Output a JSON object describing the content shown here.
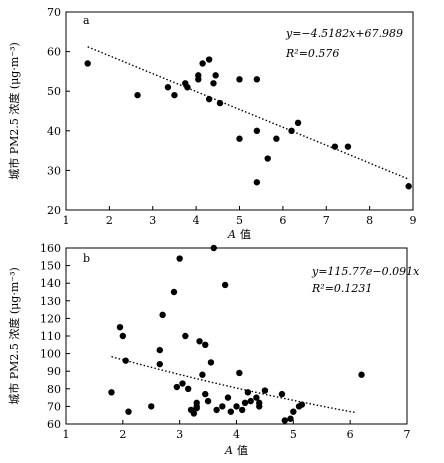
{
  "chart_data": [
    {
      "type": "scatter",
      "panel_label": "a",
      "xlabel_var": "A",
      "xlabel_word": "值",
      "ylabel": "城市 PM2.5 浓度 (μg·m⁻³)",
      "xlim": [
        1,
        9
      ],
      "ylim": [
        20,
        70
      ],
      "xticks": [
        "1",
        "2",
        "3",
        "4",
        "5",
        "6",
        "7",
        "8",
        "9"
      ],
      "yticks": [
        "20",
        "30",
        "40",
        "50",
        "60",
        "70"
      ],
      "equation": "y=−4.5182x+67.989",
      "r2": "R²=0.576",
      "fit": {
        "kind": "linear",
        "slope": -4.5182,
        "intercept": 67.989,
        "x_range": [
          1.5,
          8.9
        ]
      },
      "points": [
        [
          1.5,
          57
        ],
        [
          2.65,
          49
        ],
        [
          3.35,
          51
        ],
        [
          3.5,
          49
        ],
        [
          3.75,
          52
        ],
        [
          3.8,
          51
        ],
        [
          4.05,
          54
        ],
        [
          4.05,
          53
        ],
        [
          4.15,
          57
        ],
        [
          4.3,
          58
        ],
        [
          4.3,
          48
        ],
        [
          4.4,
          52
        ],
        [
          4.45,
          54
        ],
        [
          4.55,
          47
        ],
        [
          5.0,
          53
        ],
        [
          5.0,
          38
        ],
        [
          5.4,
          53
        ],
        [
          5.4,
          40
        ],
        [
          5.4,
          27
        ],
        [
          5.65,
          33
        ],
        [
          5.85,
          38
        ],
        [
          6.2,
          40
        ],
        [
          6.35,
          42
        ],
        [
          7.2,
          36
        ],
        [
          7.5,
          36
        ],
        [
          8.9,
          26
        ]
      ]
    },
    {
      "type": "scatter",
      "panel_label": "b",
      "xlabel_var": "A",
      "xlabel_word": "值",
      "ylabel": "城市 PM2.5 浓度 (μg·m⁻³)",
      "xlim": [
        1,
        7
      ],
      "ylim": [
        60,
        160
      ],
      "xticks": [
        "1",
        "2",
        "3",
        "4",
        "5",
        "6",
        "7"
      ],
      "yticks": [
        "60",
        "70",
        "80",
        "90",
        "100",
        "110",
        "120",
        "130",
        "140",
        "150",
        "160"
      ],
      "equation": "y=115.77e−0.091x",
      "r2": "R²=0.1231",
      "fit": {
        "kind": "exponential",
        "a": 115.77,
        "b": -0.091,
        "x_range": [
          1.8,
          6.1
        ]
      },
      "points": [
        [
          1.8,
          78
        ],
        [
          1.95,
          115
        ],
        [
          2.0,
          110
        ],
        [
          2.05,
          96
        ],
        [
          2.1,
          67
        ],
        [
          2.5,
          70
        ],
        [
          2.65,
          102
        ],
        [
          2.65,
          94
        ],
        [
          2.7,
          122
        ],
        [
          2.9,
          135
        ],
        [
          2.95,
          81
        ],
        [
          3.0,
          154
        ],
        [
          3.05,
          83
        ],
        [
          3.1,
          110
        ],
        [
          3.15,
          80
        ],
        [
          3.2,
          68
        ],
        [
          3.25,
          66
        ],
        [
          3.3,
          72
        ],
        [
          3.3,
          70
        ],
        [
          3.3,
          69
        ],
        [
          3.35,
          107
        ],
        [
          3.4,
          88
        ],
        [
          3.45,
          105
        ],
        [
          3.45,
          77
        ],
        [
          3.5,
          73
        ],
        [
          3.55,
          95
        ],
        [
          3.6,
          160
        ],
        [
          3.65,
          68
        ],
        [
          3.75,
          70
        ],
        [
          3.8,
          139
        ],
        [
          3.85,
          75
        ],
        [
          3.9,
          67
        ],
        [
          4.0,
          70
        ],
        [
          4.05,
          89
        ],
        [
          4.1,
          68
        ],
        [
          4.15,
          72
        ],
        [
          4.2,
          78
        ],
        [
          4.25,
          73
        ],
        [
          4.35,
          75
        ],
        [
          4.4,
          70
        ],
        [
          4.4,
          72
        ],
        [
          4.5,
          79
        ],
        [
          4.8,
          77
        ],
        [
          4.85,
          62
        ],
        [
          4.95,
          63
        ],
        [
          5.0,
          67
        ],
        [
          5.1,
          70
        ],
        [
          5.15,
          71
        ],
        [
          6.2,
          88
        ]
      ]
    }
  ]
}
